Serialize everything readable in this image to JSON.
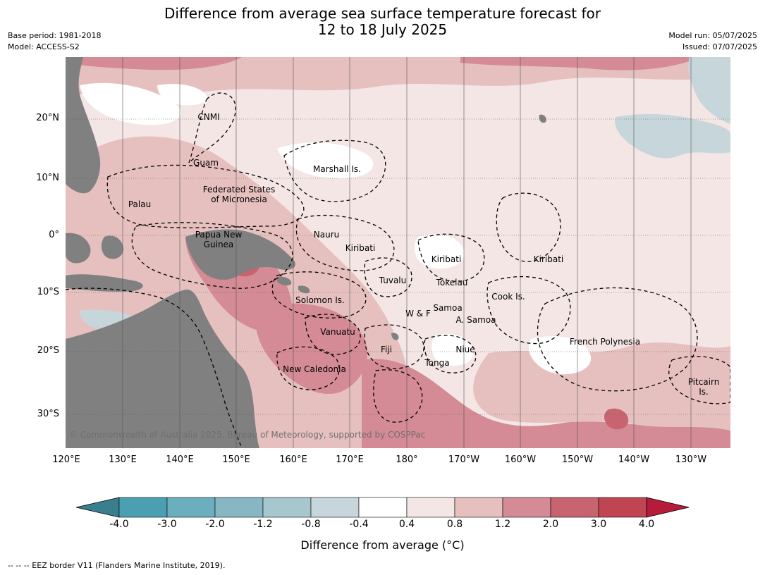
{
  "header": {
    "title_line1": "Difference from average sea surface temperature forecast for",
    "title_line2": "12 to 18 July 2025",
    "base_period": "Base period: 1981-2018",
    "model": "Model: ACCESS-S2",
    "model_run": "Model run: 05/07/2025",
    "issued": "Issued: 07/07/2025"
  },
  "map": {
    "lat_labels": [
      "20°N",
      "10°N",
      "0°",
      "10°S",
      "20°S",
      "30°S"
    ],
    "lon_labels": [
      "120°E",
      "130°E",
      "140°E",
      "150°E",
      "160°E",
      "170°E",
      "180°",
      "170°W",
      "160°W",
      "150°W",
      "140°W",
      "130°W"
    ],
    "regions": [
      "CNMI",
      "Guam",
      "Marshall Is.",
      "Federated States",
      "of Micronesia",
      "Palau",
      "Papua New",
      "Guinea",
      "Nauru",
      "Kiribati",
      "Kiribati",
      "Kiribati",
      "Tuvalu",
      "Tokelau",
      "Cook Is.",
      "Solomon Is.",
      "W & F",
      "Samoa",
      "A. Samoa",
      "Vanuatu",
      "Fiji",
      "Niue",
      "French Polynesia",
      "Tonga",
      "New Caledonia",
      "Pitcairn",
      "Is."
    ],
    "copyright": "© Commonwealth of Australia 2025, Bureau of Meteorology, supported by COSPPac",
    "colors": {
      "land": "#808080",
      "ocean_light": "#f4e6e5",
      "ocean_medium": "#e6c0bf",
      "ocean_strong": "#d48b95",
      "ocean_stronger": "#c7646f",
      "ocean_cool": "#c7d6da"
    }
  },
  "colorbar": {
    "tick_labels": [
      "-4.0",
      "-3.0",
      "-2.0",
      "-1.2",
      "-0.8",
      "-0.4",
      "0.4",
      "0.8",
      "1.2",
      "2.0",
      "3.0",
      "4.0"
    ],
    "colors": [
      "#4aa0b2",
      "#6baebe",
      "#88b7c4",
      "#a6c7cd",
      "#c7d6da",
      "#ffffff",
      "#f4e6e5",
      "#e6c0bf",
      "#d48b95",
      "#c7646f",
      "#bf4553"
    ],
    "under_color": "#3a7f8e",
    "over_color": "#b51c3a",
    "title": "Difference from average (°C)"
  },
  "footnote": "-- -- -- EEZ border V11 (Flanders Marine Institute, 2019)."
}
